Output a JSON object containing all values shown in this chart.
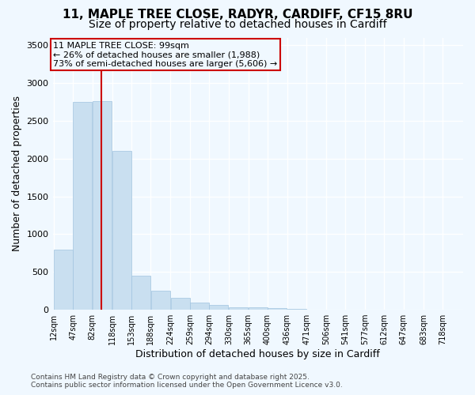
{
  "title_line1": "11, MAPLE TREE CLOSE, RADYR, CARDIFF, CF15 8RU",
  "title_line2": "Size of property relative to detached houses in Cardiff",
  "bar_bins": [
    12,
    47,
    82,
    118,
    153,
    188,
    224,
    259,
    294,
    330,
    365,
    400,
    436,
    471,
    506,
    541,
    577,
    612,
    647,
    683,
    718
  ],
  "bar_values": [
    800,
    2750,
    2760,
    2100,
    450,
    255,
    160,
    100,
    60,
    30,
    30,
    20,
    10,
    6,
    5,
    3,
    3,
    2,
    2,
    1
  ],
  "bar_color": "#c9dff0",
  "bar_edge_color": "#a0c4e0",
  "vline_x": 99,
  "vline_color": "#cc0000",
  "annotation_title": "11 MAPLE TREE CLOSE: 99sqm",
  "annotation_line1": "← 26% of detached houses are smaller (1,988)",
  "annotation_line2": "73% of semi-detached houses are larger (5,606) →",
  "annotation_box_color": "#cc0000",
  "xlabel": "Distribution of detached houses by size in Cardiff",
  "ylabel": "Number of detached properties",
  "ylim": [
    0,
    3600
  ],
  "yticks": [
    0,
    500,
    1000,
    1500,
    2000,
    2500,
    3000,
    3500
  ],
  "footer_line1": "Contains HM Land Registry data © Crown copyright and database right 2025.",
  "footer_line2": "Contains public sector information licensed under the Open Government Licence v3.0.",
  "bg_color": "#f0f8ff",
  "grid_color": "#ffffff",
  "title1_fontsize": 11,
  "title2_fontsize": 10,
  "axis_fontsize": 9,
  "tick_fontsize": 8,
  "annot_fontsize": 8,
  "footer_fontsize": 6.5
}
